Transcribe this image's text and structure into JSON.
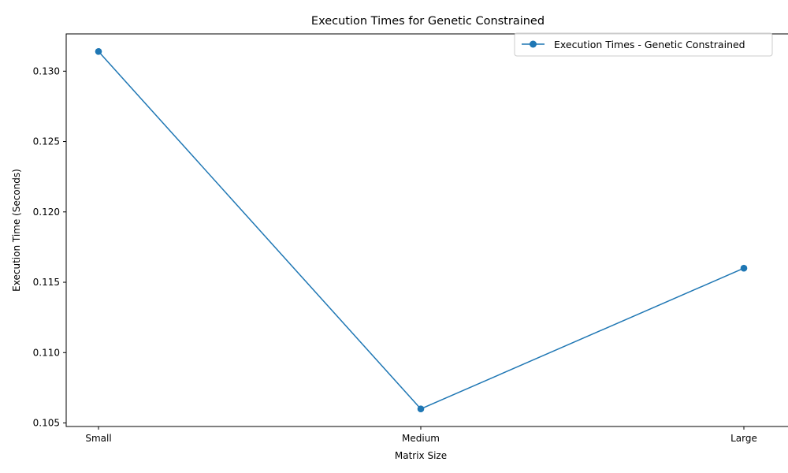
{
  "chart_data": {
    "type": "line",
    "title": "Execution Times for Genetic Constrained",
    "xlabel": "Matrix Size",
    "ylabel": "Execution Time (Seconds)",
    "categories": [
      "Small",
      "Medium",
      "Large"
    ],
    "series": [
      {
        "name": "Execution Times - Genetic Constrained",
        "values": [
          0.1314,
          0.106,
          0.116
        ],
        "color": "#1f77b4",
        "marker": "circle"
      }
    ],
    "ylim": [
      0.10475,
      0.13265
    ],
    "yticks": [
      0.105,
      0.11,
      0.115,
      0.12,
      0.125,
      0.13
    ],
    "ytick_labels": [
      "0.105",
      "0.110",
      "0.115",
      "0.120",
      "0.125",
      "0.130"
    ],
    "grid": false,
    "legend_position": "top-right"
  }
}
